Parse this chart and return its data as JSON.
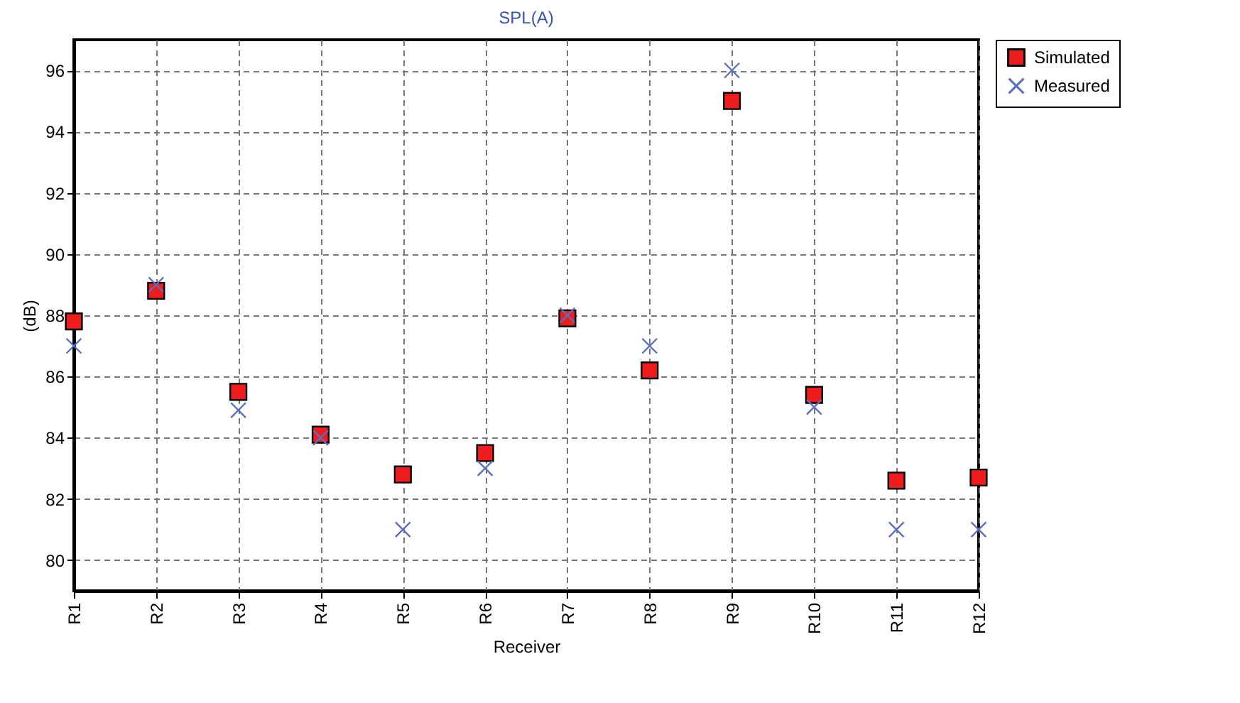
{
  "chart_data": {
    "type": "scatter",
    "title": "SPL(A)",
    "xlabel": "Receiver",
    "ylabel": "(dB)",
    "categories": [
      "R1",
      "R2",
      "R3",
      "R4",
      "R5",
      "R6",
      "R7",
      "R8",
      "R9",
      "R10",
      "R11",
      "R12"
    ],
    "series": [
      {
        "name": "Simulated",
        "color": "#ee1c1c",
        "marker": "square",
        "values": [
          87.8,
          88.8,
          85.5,
          84.1,
          82.8,
          83.5,
          87.9,
          86.2,
          95.0,
          85.4,
          82.6,
          82.7
        ]
      },
      {
        "name": "Measured",
        "color": "#5a6fbf",
        "marker": "cross",
        "values": [
          87.0,
          89.0,
          84.9,
          84.0,
          81.0,
          83.0,
          88.0,
          87.0,
          96.0,
          85.0,
          81.0,
          81.0
        ]
      }
    ],
    "ylim": [
      79,
      97
    ],
    "yticks": [
      80,
      82,
      84,
      86,
      88,
      90,
      92,
      94,
      96
    ],
    "grid": true,
    "legend": "top right"
  }
}
